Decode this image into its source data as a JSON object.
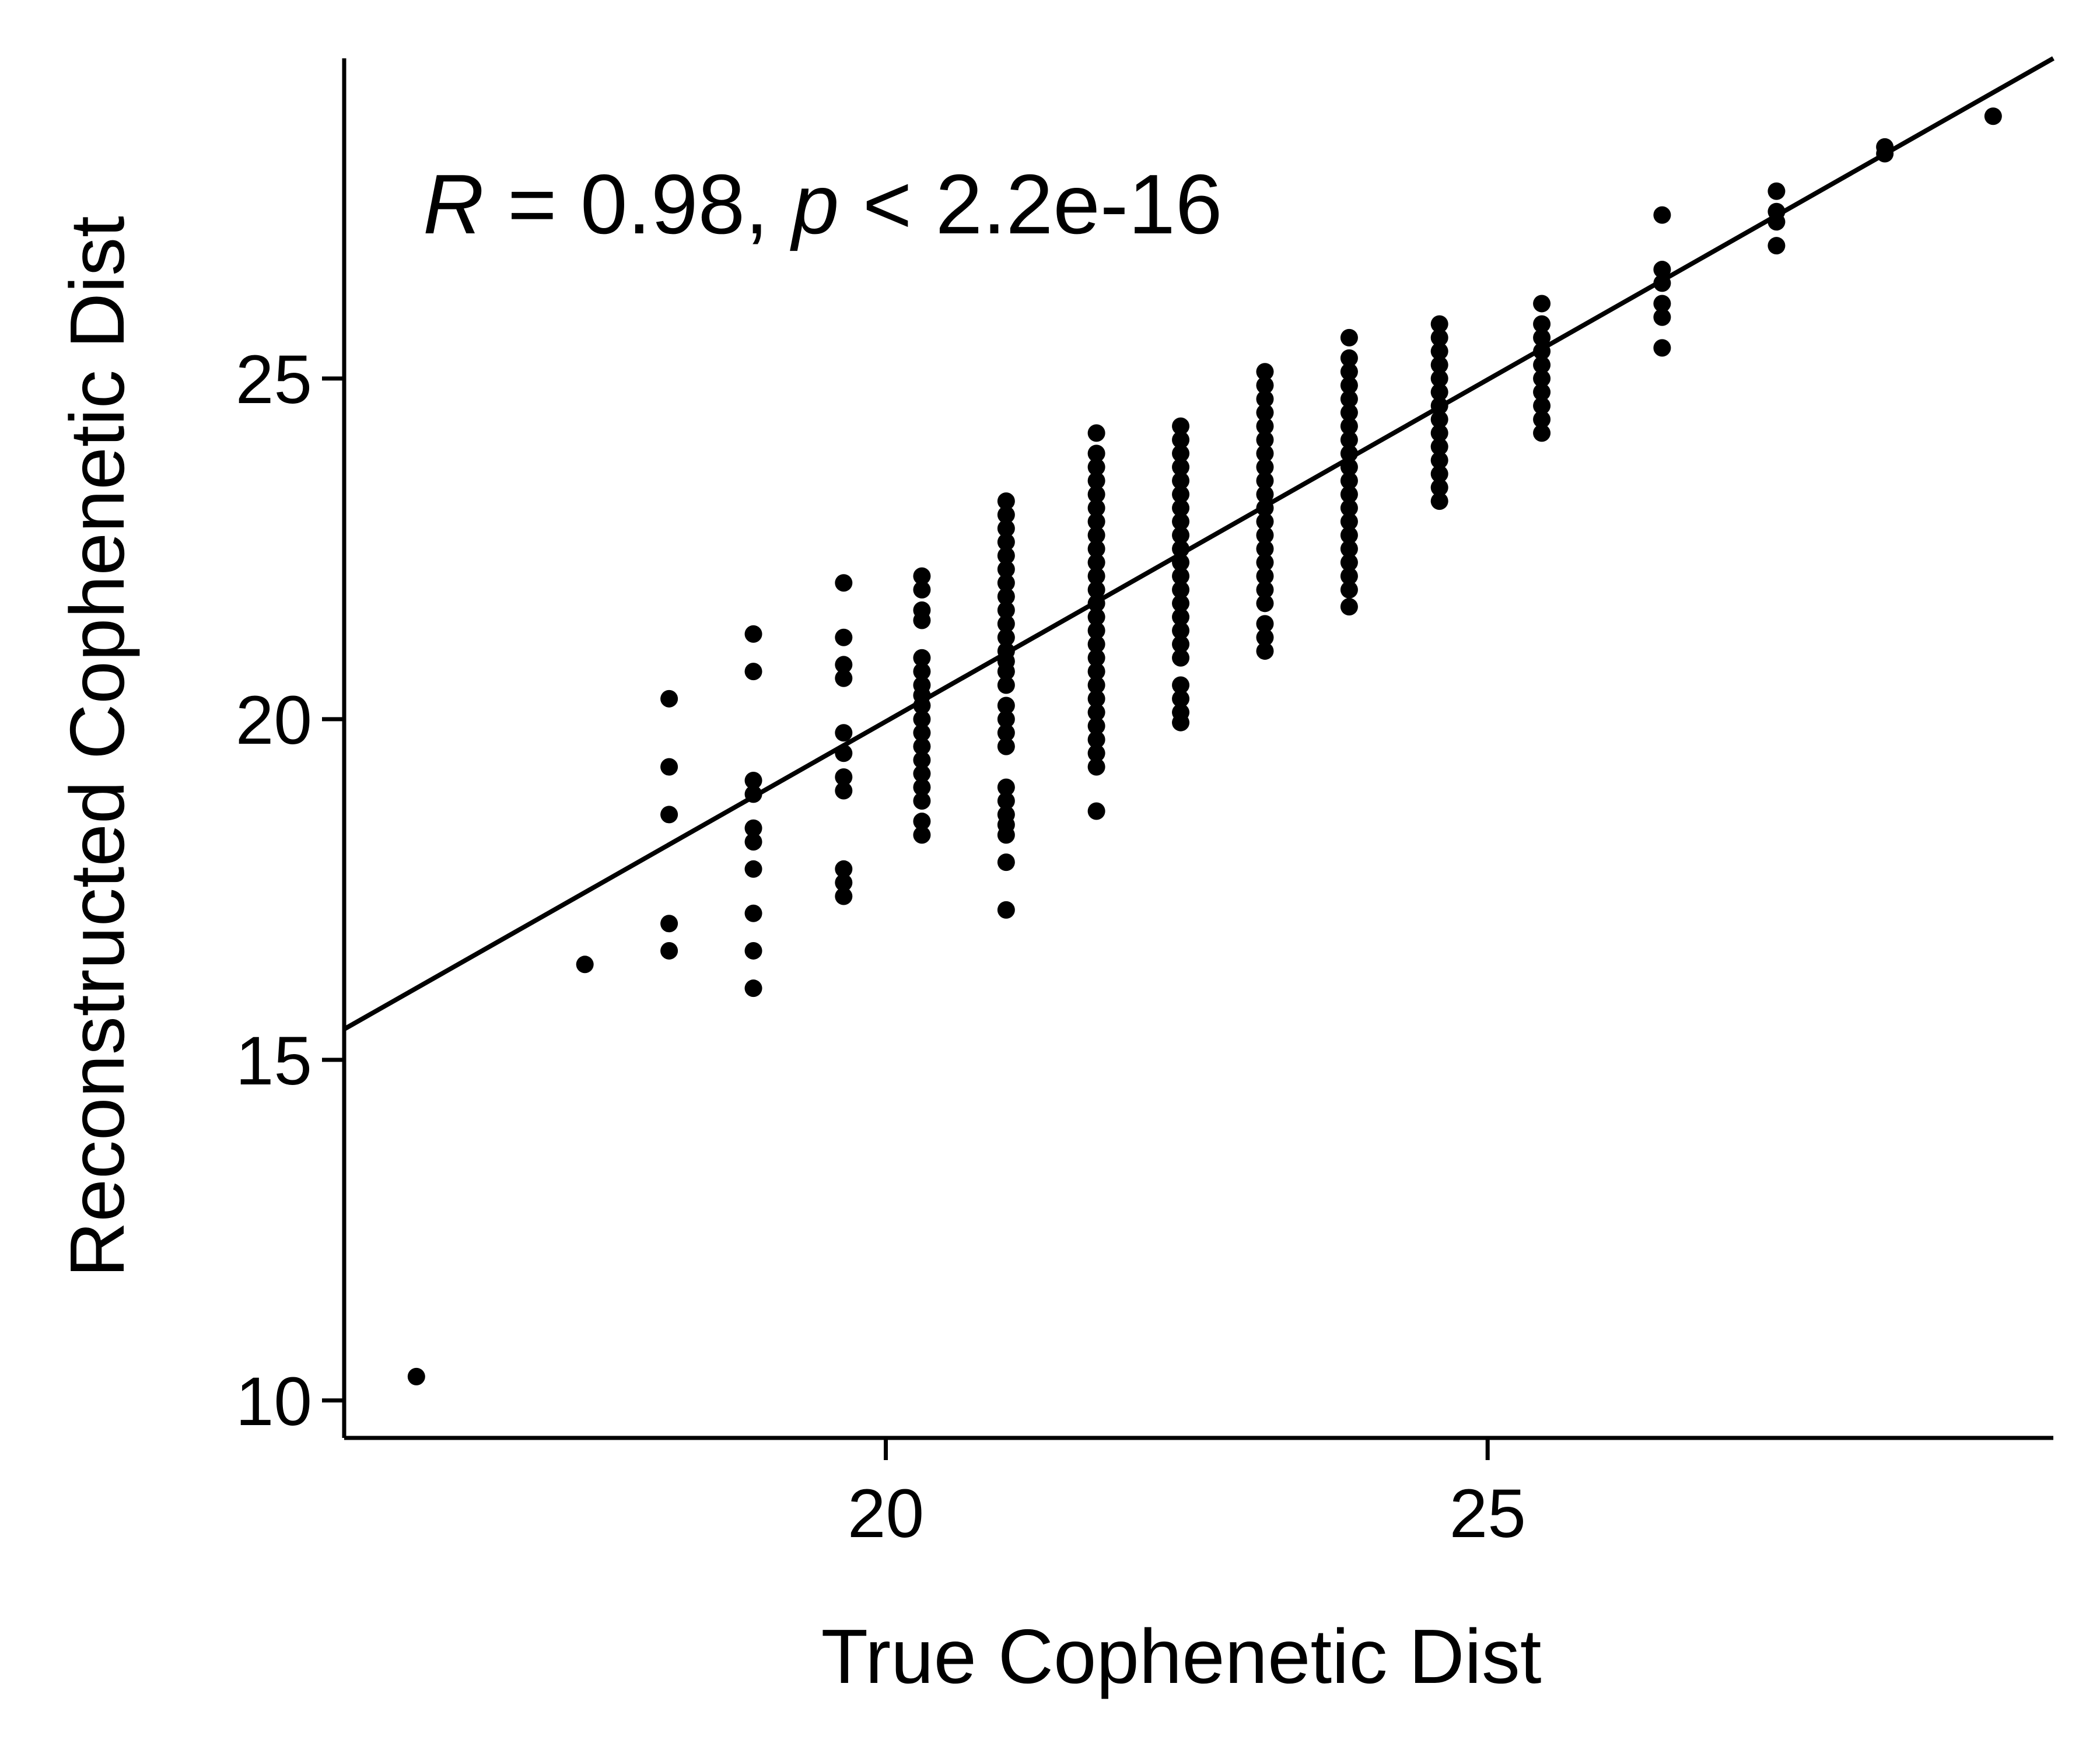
{
  "chart_data": {
    "type": "scatter",
    "xlabel": "True Cophenetic Dist",
    "ylabel": "Reconstructed Cophenetic Dist",
    "xlim": [
      15.5,
      29.7
    ],
    "ylim": [
      9.45,
      29.7
    ],
    "xticks": [
      20,
      25
    ],
    "yticks": [
      10,
      15,
      20,
      25
    ],
    "grid": false,
    "annotation": {
      "r_symbol": "R",
      "r_text": " = 0.98, ",
      "p_symbol": "p",
      "p_text": " < 2.2e-16"
    },
    "fit_line": {
      "x": [
        15.5,
        29.7
      ],
      "y": [
        15.45,
        29.7
      ]
    },
    "clusters": [
      {
        "x": 16.1,
        "y": [
          10.35
        ]
      },
      {
        "x": 17.5,
        "y": [
          16.4
        ]
      },
      {
        "x": 18.2,
        "y": [
          16.6,
          17.0,
          18.6,
          19.3,
          20.3
        ]
      },
      {
        "x": 18.9,
        "y": [
          16.05,
          16.6,
          17.15,
          17.8,
          18.2,
          18.4,
          18.9,
          19.1,
          20.7,
          21.25
        ]
      },
      {
        "x": 19.65,
        "y": [
          17.4,
          17.6,
          17.8,
          18.95,
          19.15,
          19.5,
          19.8,
          20.6,
          20.8,
          21.2,
          22.0
        ]
      },
      {
        "x": 20.3,
        "y": [
          18.3,
          18.5,
          18.8,
          19.0,
          19.2,
          19.4,
          19.6,
          19.8,
          20.0,
          20.2,
          20.35,
          20.5,
          20.7,
          20.9,
          21.45,
          21.6,
          21.9,
          22.1
        ]
      },
      {
        "x": 21.0,
        "y": [
          17.2,
          17.9,
          18.3,
          18.45,
          18.6,
          18.8,
          19.0,
          19.6,
          19.8,
          20.0,
          20.2,
          20.5,
          20.7,
          20.85,
          21.0,
          21.2,
          21.4,
          21.6,
          21.8,
          22.0,
          22.2,
          22.4,
          22.6,
          22.8,
          23.0,
          23.2
        ]
      },
      {
        "x": 21.75,
        "y": [
          18.65,
          19.3,
          19.5,
          19.7,
          19.9,
          20.1,
          20.3,
          20.5,
          20.7,
          20.9,
          21.1,
          21.3,
          21.5,
          21.7,
          21.9,
          22.1,
          22.3,
          22.5,
          22.7,
          22.9,
          23.1,
          23.3,
          23.5,
          23.7,
          23.9,
          24.2
        ]
      },
      {
        "x": 22.45,
        "y": [
          19.95,
          20.1,
          20.3,
          20.5,
          20.9,
          21.1,
          21.3,
          21.5,
          21.7,
          21.9,
          22.1,
          22.3,
          22.5,
          22.7,
          22.9,
          23.1,
          23.3,
          23.5,
          23.7,
          23.9,
          24.1,
          24.3
        ]
      },
      {
        "x": 23.15,
        "y": [
          21.0,
          21.2,
          21.4,
          21.7,
          21.9,
          22.1,
          22.3,
          22.5,
          22.7,
          22.9,
          23.1,
          23.3,
          23.5,
          23.7,
          23.9,
          24.1,
          24.3,
          24.5,
          24.7,
          24.9,
          25.1
        ]
      },
      {
        "x": 23.85,
        "y": [
          21.65,
          21.9,
          22.1,
          22.3,
          22.5,
          22.7,
          22.9,
          23.1,
          23.3,
          23.5,
          23.7,
          23.9,
          24.1,
          24.3,
          24.5,
          24.7,
          24.9,
          25.1,
          25.3,
          25.6
        ]
      },
      {
        "x": 24.6,
        "y": [
          23.2,
          23.4,
          23.6,
          23.8,
          24.0,
          24.2,
          24.4,
          24.6,
          24.8,
          25.0,
          25.2,
          25.4,
          25.6,
          25.8
        ]
      },
      {
        "x": 25.45,
        "y": [
          24.2,
          24.4,
          24.6,
          24.8,
          25.0,
          25.2,
          25.4,
          25.6,
          25.8,
          26.1
        ]
      },
      {
        "x": 26.45,
        "y": [
          25.45,
          25.9,
          26.1,
          26.4,
          26.6,
          27.4
        ]
      },
      {
        "x": 27.4,
        "y": [
          26.95,
          27.3,
          27.45,
          27.75
        ]
      },
      {
        "x": 28.3,
        "y": [
          28.3,
          28.4
        ]
      },
      {
        "x": 29.2,
        "y": [
          28.85
        ]
      }
    ]
  }
}
